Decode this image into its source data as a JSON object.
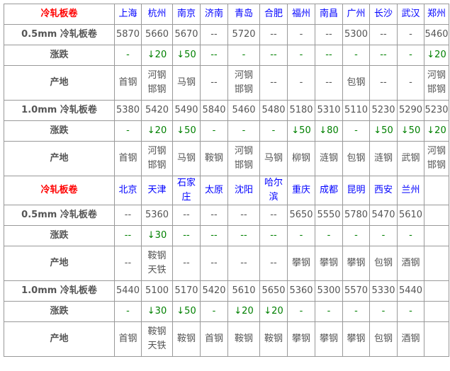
{
  "sections": [
    {
      "header": {
        "label": "冷轧板卷",
        "cities": [
          "上海",
          "杭州",
          "南京",
          "济南",
          "青岛",
          "合肥",
          "福州",
          "南昌",
          "广州",
          "长沙",
          "武汉",
          "郑州"
        ]
      },
      "rows": [
        {
          "type": "price",
          "label": "0.5mm 冷轧板卷",
          "values": [
            "5870",
            "5660",
            "5670",
            "--",
            "5720",
            "--",
            "-",
            "--",
            "5300",
            "--",
            "-",
            "5460"
          ]
        },
        {
          "type": "change",
          "label": "涨跌",
          "values": [
            "-",
            "↓20",
            "↓50",
            "--",
            "-",
            "--",
            "-",
            "--",
            "-",
            "--",
            "-",
            "↓20"
          ]
        },
        {
          "type": "origin",
          "label": "产地",
          "values": [
            "首钢",
            "河钢\n邯钢",
            "马钢",
            "--",
            "河钢\n邯钢",
            "--",
            "-",
            "--",
            "包钢",
            "--",
            "-",
            "河钢\n邯钢"
          ]
        },
        {
          "type": "price",
          "label": "1.0mm 冷轧板卷",
          "values": [
            "5380",
            "5420",
            "5490",
            "5840",
            "5460",
            "5480",
            "5180",
            "5310",
            "5110",
            "5230",
            "5290",
            "5230"
          ]
        },
        {
          "type": "change",
          "label": "涨跌",
          "values": [
            "-",
            "↓20",
            "↓50",
            "-",
            "-",
            "-",
            "↓50",
            "↓80",
            "-",
            "↓50",
            "↓50",
            "↓20"
          ]
        },
        {
          "type": "origin",
          "label": "产地",
          "values": [
            "首钢",
            "河钢\n邯钢",
            "马钢",
            "鞍钢",
            "河钢\n邯钢",
            "马钢",
            "柳钢",
            "涟钢",
            "包钢",
            "涟钢",
            "武钢",
            "河钢\n邯钢"
          ]
        }
      ]
    },
    {
      "header": {
        "label": "冷轧板卷",
        "cities": [
          "北京",
          "天津",
          "石家\n庄",
          "太原",
          "沈阳",
          "哈尔\n滨",
          "重庆",
          "成都",
          "昆明",
          "西安",
          "兰州",
          ""
        ]
      },
      "rows": [
        {
          "type": "price",
          "label": "0.5mm 冷轧板卷",
          "values": [
            "--",
            "5360",
            "--",
            "--",
            "--",
            "--",
            "5650",
            "5550",
            "5780",
            "5470",
            "5610",
            ""
          ]
        },
        {
          "type": "change",
          "label": "涨跌",
          "values": [
            "--",
            "↓30",
            "--",
            "--",
            "--",
            "--",
            "-",
            "-",
            "-",
            "-",
            "-",
            ""
          ]
        },
        {
          "type": "origin",
          "label": "产地",
          "values": [
            "--",
            "鞍钢\n天铁",
            "--",
            "--",
            "--",
            "--",
            "攀钢",
            "攀钢",
            "攀钢",
            "包钢",
            "酒钢",
            ""
          ]
        },
        {
          "type": "price",
          "label": "1.0mm 冷轧板卷",
          "values": [
            "5440",
            "5100",
            "5170",
            "5420",
            "5610",
            "5650",
            "5360",
            "5300",
            "5570",
            "5330",
            "5440",
            ""
          ]
        },
        {
          "type": "change",
          "label": "涨跌",
          "values": [
            "-",
            "↓30",
            "↓50",
            "-",
            "↓20",
            "↓20",
            "-",
            "-",
            "-",
            "-",
            "-",
            ""
          ]
        },
        {
          "type": "origin",
          "label": "产地",
          "values": [
            "首钢",
            "鞍钢\n天铁",
            "鞍钢",
            "首钢",
            "鞍钢",
            "鞍钢",
            "攀钢",
            "攀钢",
            "攀钢",
            "包钢",
            "酒钢",
            ""
          ]
        }
      ]
    }
  ],
  "colors": {
    "header_label": "#ff0000",
    "city": "#0000ff",
    "change": "#008000",
    "text": "#555555"
  }
}
